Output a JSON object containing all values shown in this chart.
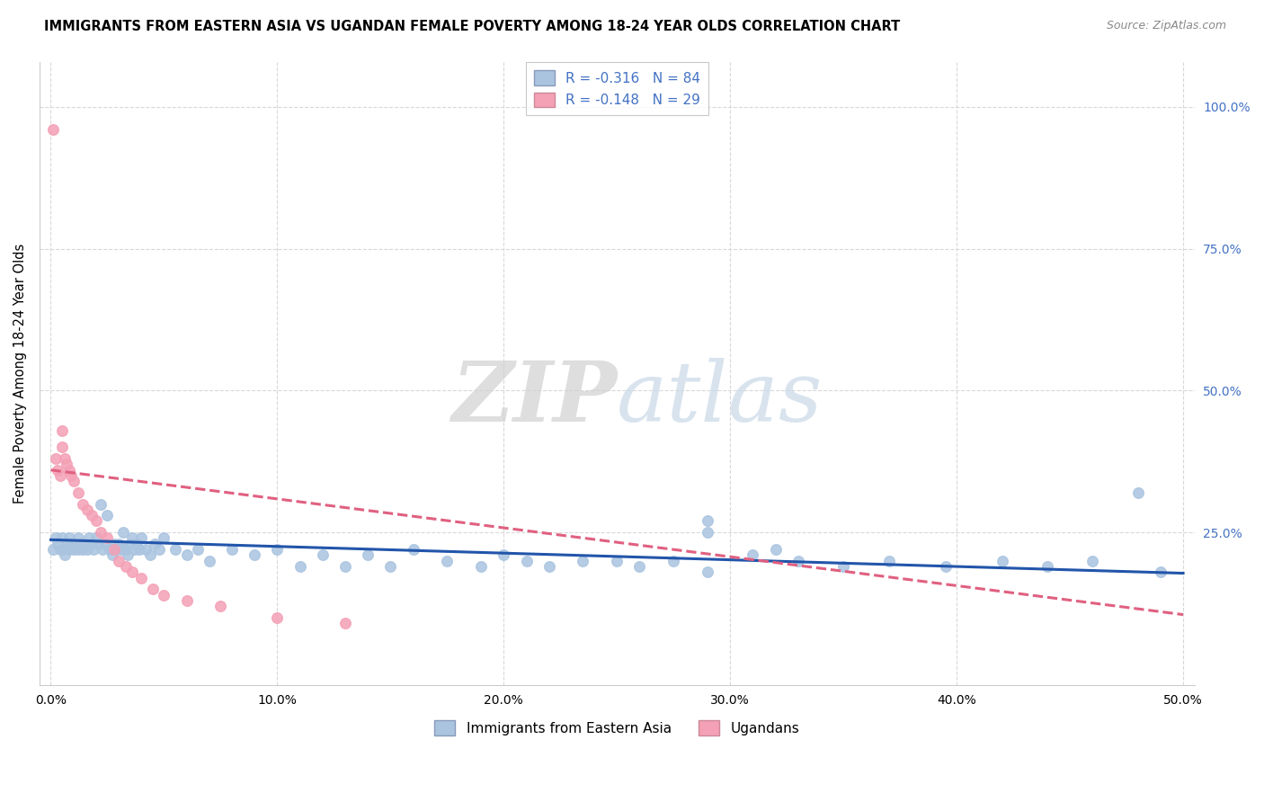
{
  "title": "IMMIGRANTS FROM EASTERN ASIA VS UGANDAN FEMALE POVERTY AMONG 18-24 YEAR OLDS CORRELATION CHART",
  "source": "Source: ZipAtlas.com",
  "ylabel": "Female Poverty Among 18-24 Year Olds",
  "xlabel": "",
  "xlim": [
    -0.005,
    0.505
  ],
  "ylim": [
    -0.02,
    1.08
  ],
  "xtick_labels": [
    "0.0%",
    "10.0%",
    "20.0%",
    "30.0%",
    "40.0%",
    "50.0%"
  ],
  "xtick_values": [
    0.0,
    0.1,
    0.2,
    0.3,
    0.4,
    0.5
  ],
  "ytick_labels_right": [
    "100.0%",
    "75.0%",
    "50.0%",
    "25.0%"
  ],
  "ytick_values_right": [
    1.0,
    0.75,
    0.5,
    0.25
  ],
  "watermark_zip": "ZIP",
  "watermark_atlas": "atlas",
  "legend_blue_label": "R = -0.316   N = 84",
  "legend_pink_label": "R = -0.148   N = 29",
  "blue_color": "#aac4e0",
  "pink_color": "#f4a0b5",
  "blue_line_color": "#2255aa",
  "pink_line_color": "#e06080",
  "background_color": "#ffffff",
  "grid_color": "#d8d8d8",
  "bottom_legend_blue": "Immigrants from Eastern Asia",
  "bottom_legend_pink": "Ugandans",
  "blue_x": [
    0.001,
    0.002,
    0.003,
    0.004,
    0.005,
    0.005,
    0.006,
    0.007,
    0.008,
    0.008,
    0.009,
    0.01,
    0.011,
    0.012,
    0.012,
    0.013,
    0.014,
    0.015,
    0.016,
    0.017,
    0.018,
    0.019,
    0.02,
    0.021,
    0.022,
    0.023,
    0.024,
    0.025,
    0.026,
    0.027,
    0.028,
    0.029,
    0.03,
    0.031,
    0.032,
    0.033,
    0.034,
    0.035,
    0.036,
    0.037,
    0.038,
    0.039,
    0.04,
    0.042,
    0.044,
    0.046,
    0.048,
    0.05,
    0.055,
    0.06,
    0.065,
    0.07,
    0.08,
    0.09,
    0.1,
    0.11,
    0.12,
    0.13,
    0.14,
    0.15,
    0.16,
    0.175,
    0.19,
    0.2,
    0.21,
    0.22,
    0.235,
    0.25,
    0.26,
    0.275,
    0.29,
    0.31,
    0.33,
    0.35,
    0.37,
    0.395,
    0.42,
    0.44,
    0.46,
    0.49,
    0.29,
    0.32,
    0.29,
    0.48
  ],
  "blue_y": [
    0.22,
    0.24,
    0.23,
    0.22,
    0.24,
    0.22,
    0.21,
    0.23,
    0.22,
    0.24,
    0.23,
    0.22,
    0.23,
    0.22,
    0.24,
    0.23,
    0.22,
    0.23,
    0.22,
    0.24,
    0.23,
    0.22,
    0.24,
    0.23,
    0.3,
    0.22,
    0.23,
    0.28,
    0.22,
    0.21,
    0.23,
    0.22,
    0.23,
    0.22,
    0.25,
    0.22,
    0.21,
    0.23,
    0.24,
    0.22,
    0.23,
    0.22,
    0.24,
    0.22,
    0.21,
    0.23,
    0.22,
    0.24,
    0.22,
    0.21,
    0.22,
    0.2,
    0.22,
    0.21,
    0.22,
    0.19,
    0.21,
    0.19,
    0.21,
    0.19,
    0.22,
    0.2,
    0.19,
    0.21,
    0.2,
    0.19,
    0.2,
    0.2,
    0.19,
    0.2,
    0.18,
    0.21,
    0.2,
    0.19,
    0.2,
    0.19,
    0.2,
    0.19,
    0.2,
    0.18,
    0.25,
    0.22,
    0.27,
    0.32
  ],
  "pink_x": [
    0.001,
    0.002,
    0.003,
    0.004,
    0.005,
    0.005,
    0.006,
    0.007,
    0.008,
    0.009,
    0.01,
    0.012,
    0.014,
    0.016,
    0.018,
    0.02,
    0.022,
    0.025,
    0.028,
    0.03,
    0.033,
    0.036,
    0.04,
    0.045,
    0.05,
    0.06,
    0.075,
    0.1,
    0.13
  ],
  "pink_y": [
    0.96,
    0.38,
    0.36,
    0.35,
    0.43,
    0.4,
    0.38,
    0.37,
    0.36,
    0.35,
    0.34,
    0.32,
    0.3,
    0.29,
    0.28,
    0.27,
    0.25,
    0.24,
    0.22,
    0.2,
    0.19,
    0.18,
    0.17,
    0.15,
    0.14,
    0.13,
    0.12,
    0.1,
    0.09
  ],
  "blue_trend_x": [
    0.0,
    0.5
  ],
  "blue_trend_y": [
    0.237,
    0.178
  ],
  "pink_trend_x": [
    0.0,
    0.5
  ],
  "pink_trend_y": [
    0.36,
    0.105
  ]
}
